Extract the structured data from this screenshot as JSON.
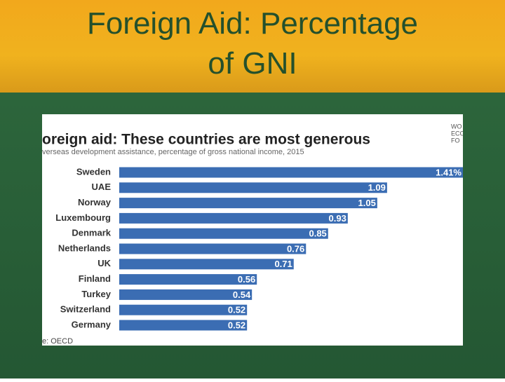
{
  "slide_title": "Foreign Aid: Percentage of GNI",
  "chart_data": {
    "type": "bar",
    "orientation": "horizontal",
    "title": "oreign aid: These countries are most generous",
    "subtitle": "verseas development assistance, percentage of gross national income, 2015",
    "source": "e: OECD",
    "logo": [
      "WO",
      "ECON",
      "FO"
    ],
    "categories": [
      "Sweden",
      "UAE",
      "Norway",
      "Luxembourg",
      "Denmark",
      "Netherlands",
      "UK",
      "Finland",
      "Turkey",
      "Switzerland",
      "Germany"
    ],
    "values": [
      1.41,
      1.09,
      1.05,
      0.93,
      0.85,
      0.76,
      0.71,
      0.56,
      0.54,
      0.52,
      0.52
    ],
    "value_labels": [
      "1.41%",
      "1.09",
      "1.05",
      "0.93",
      "0.85",
      "0.76",
      "0.71",
      "0.56",
      "0.54",
      "0.52",
      "0.52"
    ],
    "color": "#3b6db3"
  }
}
